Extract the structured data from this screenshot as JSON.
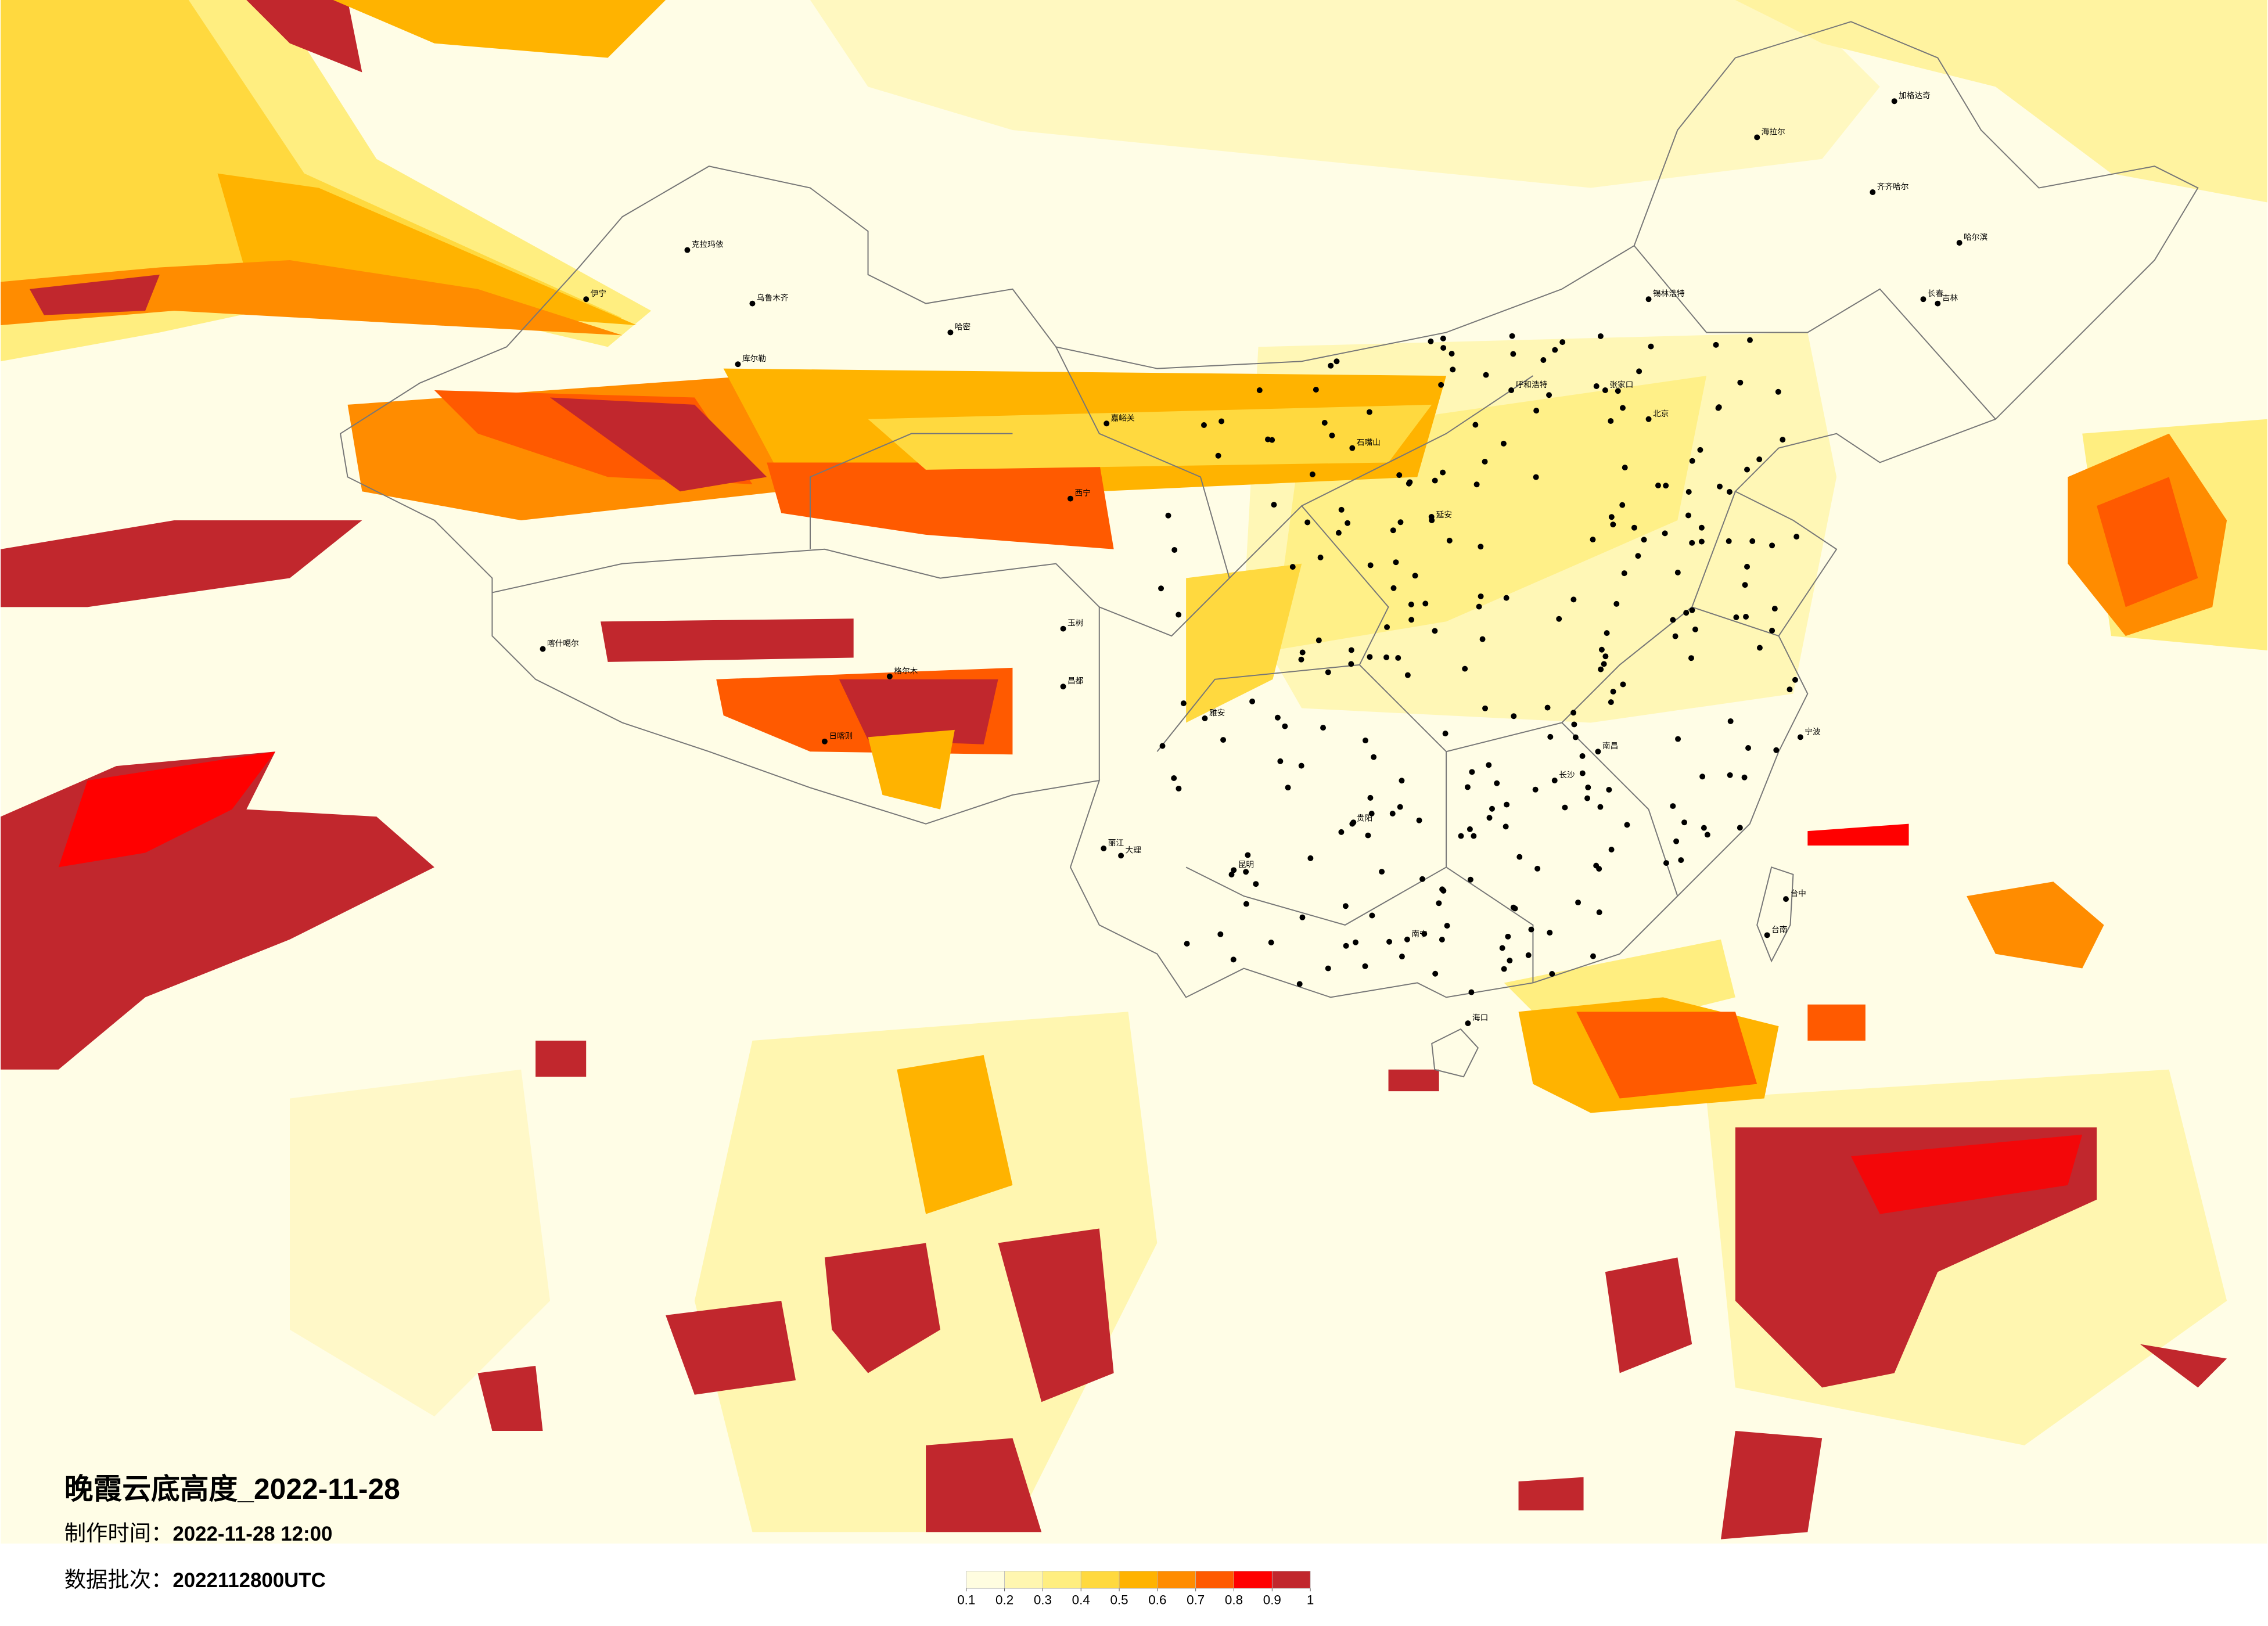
{
  "header": {
    "title": "晚霞云底高度_2022-11-28",
    "made_label": "制作时间：",
    "made_value": "2022-11-28 12:00",
    "batch_label": "数据批次：",
    "batch_value": "2022112800UTC"
  },
  "colorbar": {
    "ticks": [
      0.1,
      0.2,
      0.3,
      0.4,
      0.5,
      0.6,
      0.7,
      0.8,
      0.9,
      1
    ],
    "colors": [
      "#fffde0",
      "#fff6b0",
      "#ffee80",
      "#ffd93f",
      "#ffb300",
      "#ff8c00",
      "#ff5a00",
      "#ff0000",
      "#c1272d"
    ]
  },
  "cities": [
    {
      "name": "加格达奇"
    },
    {
      "name": "海拉尔"
    },
    {
      "name": "齐齐哈尔"
    },
    {
      "name": "哈尔滨"
    },
    {
      "name": "长春"
    },
    {
      "name": "锡林浩特"
    },
    {
      "name": "呼和浩特"
    },
    {
      "name": "张家口"
    },
    {
      "name": "北京"
    },
    {
      "name": "石嘴山"
    },
    {
      "name": "克拉玛依"
    },
    {
      "name": "乌鲁木齐"
    },
    {
      "name": "伊宁"
    },
    {
      "name": "哈密"
    },
    {
      "name": "库尔勒"
    },
    {
      "name": "嘉峪关"
    },
    {
      "name": "西宁"
    },
    {
      "name": "喀什噶尔"
    },
    {
      "name": "日喀则"
    },
    {
      "name": "格尔木"
    },
    {
      "name": "玉树"
    },
    {
      "name": "昌都"
    },
    {
      "name": "雅安"
    },
    {
      "name": "丽江"
    },
    {
      "name": "大理"
    },
    {
      "name": "昆明"
    },
    {
      "name": "贵阳"
    },
    {
      "name": "南宁"
    },
    {
      "name": "海口"
    },
    {
      "name": "台中"
    },
    {
      "name": "台南"
    },
    {
      "name": "长沙"
    },
    {
      "name": "南昌"
    },
    {
      "name": "宁波"
    },
    {
      "name": "延安"
    },
    {
      "name": "吉林"
    }
  ]
}
